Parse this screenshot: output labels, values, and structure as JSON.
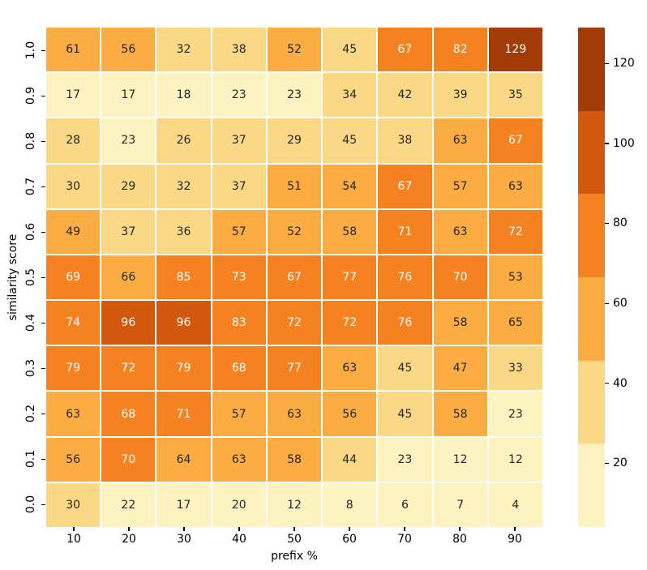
{
  "chart_data": {
    "type": "heatmap",
    "title": "",
    "xlabel": "prefix %",
    "ylabel": "similarity score",
    "x_categories": [
      "10",
      "20",
      "30",
      "40",
      "50",
      "60",
      "70",
      "80",
      "90"
    ],
    "y_categories": [
      "1.0",
      "0.9",
      "0.8",
      "0.7",
      "0.6",
      "0.5",
      "0.4",
      "0.3",
      "0.2",
      "0.1",
      "0.0"
    ],
    "values": [
      [
        61,
        56,
        32,
        38,
        52,
        45,
        67,
        82,
        129
      ],
      [
        17,
        17,
        18,
        23,
        23,
        34,
        42,
        39,
        35
      ],
      [
        28,
        23,
        26,
        37,
        29,
        45,
        38,
        63,
        67
      ],
      [
        30,
        29,
        32,
        37,
        51,
        54,
        67,
        57,
        63
      ],
      [
        49,
        37,
        36,
        57,
        52,
        58,
        71,
        63,
        72
      ],
      [
        69,
        66,
        85,
        73,
        67,
        77,
        76,
        70,
        53
      ],
      [
        74,
        96,
        96,
        83,
        72,
        72,
        76,
        58,
        65
      ],
      [
        79,
        72,
        79,
        68,
        77,
        63,
        45,
        47,
        33
      ],
      [
        63,
        68,
        71,
        57,
        63,
        56,
        45,
        58,
        23
      ],
      [
        56,
        70,
        64,
        63,
        58,
        44,
        23,
        12,
        12
      ],
      [
        30,
        22,
        17,
        20,
        12,
        8,
        6,
        7,
        4
      ]
    ],
    "vmin": 4,
    "vmax": 129,
    "n_bins": 6,
    "palette": [
      "#fdf3c1",
      "#fbd886",
      "#fbad43",
      "#f58220",
      "#d1580d",
      "#a33b08"
    ],
    "colorbar_ticks": [
      120,
      100,
      80,
      60,
      40,
      20
    ],
    "annot_dark_color": "#262626",
    "annot_light_color": "#ffffff",
    "tick_color": "#000000",
    "background_color": "#ffffff",
    "grid_line_color": "#ffffff",
    "legend_position": "right-colorbar",
    "grid": "off"
  }
}
